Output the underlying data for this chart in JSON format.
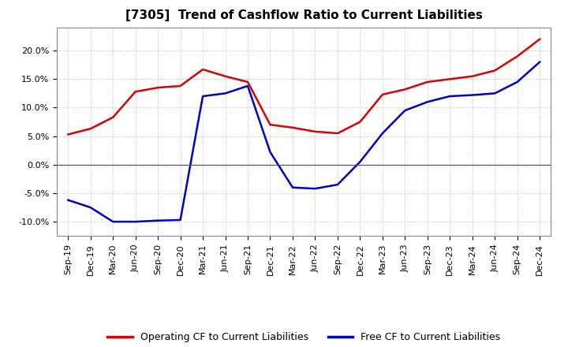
{
  "title": "[7305]  Trend of Cashflow Ratio to Current Liabilities",
  "x_labels": [
    "Sep-19",
    "Dec-19",
    "Mar-20",
    "Jun-20",
    "Sep-20",
    "Dec-20",
    "Mar-21",
    "Jun-21",
    "Sep-21",
    "Dec-21",
    "Mar-22",
    "Jun-22",
    "Sep-22",
    "Dec-22",
    "Mar-23",
    "Jun-23",
    "Sep-23",
    "Dec-23",
    "Mar-24",
    "Jun-24",
    "Sep-24",
    "Dec-24"
  ],
  "operating_cf": [
    5.3,
    6.3,
    8.3,
    12.8,
    13.5,
    13.8,
    16.7,
    15.5,
    14.5,
    7.0,
    6.5,
    5.8,
    5.5,
    7.5,
    12.3,
    13.2,
    14.5,
    15.0,
    15.5,
    16.5,
    19.0,
    22.0
  ],
  "free_cf": [
    -6.2,
    -7.5,
    -10.0,
    -10.0,
    -9.8,
    -9.7,
    12.0,
    12.5,
    13.8,
    2.2,
    -4.0,
    -4.2,
    -3.5,
    0.5,
    5.5,
    9.5,
    11.0,
    12.0,
    12.2,
    12.5,
    14.5,
    18.0
  ],
  "ylim": [
    -12.5,
    24.0
  ],
  "yticks": [
    -10.0,
    -5.0,
    0.0,
    5.0,
    10.0,
    15.0,
    20.0
  ],
  "operating_color": "#dd0000",
  "free_color": "#0000cc",
  "grid_color": "#bbbbbb",
  "zero_line_color": "#555555",
  "background_color": "#ffffff",
  "spine_color": "#888888",
  "legend_op": "Operating CF to Current Liabilities",
  "legend_free": "Free CF to Current Liabilities",
  "title_fontsize": 11,
  "tick_fontsize": 8,
  "legend_fontsize": 9,
  "linewidth": 1.8
}
